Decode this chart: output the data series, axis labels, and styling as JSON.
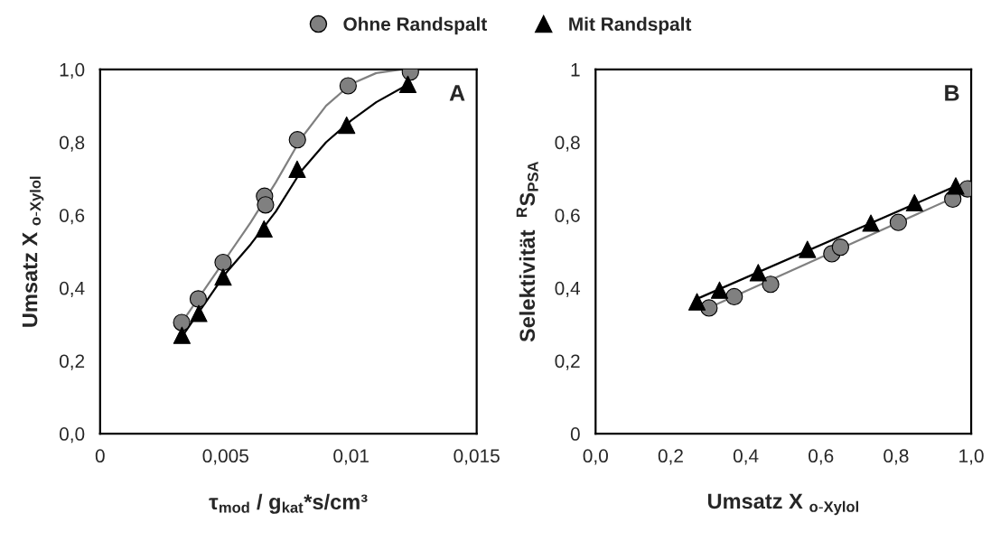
{
  "chart_data": [
    {
      "type": "scatter",
      "xlabel": "τ$_{mod}$ / g$_{kat}$*s/cm³",
      "ylabel": "Umsatz X $_{o-Xylol}$",
      "annotations": [
        "A"
      ],
      "legend": "top",
      "xlim": [
        0,
        0.015
      ],
      "xticks": [
        0,
        {
          "value": 0.005,
          "label": "0,005"
        },
        {
          "value": 0.01,
          "label": "0,01"
        },
        {
          "value": 0.015,
          "label": "0,015"
        }
      ],
      "ylim": [
        0,
        1
      ],
      "yticks": [
        {
          "value": 0,
          "label": "0,0"
        },
        {
          "value": 0.2,
          "label": "0,2"
        },
        {
          "value": 0.4,
          "label": "0,4"
        },
        {
          "value": 0.6,
          "label": "0,6"
        },
        {
          "value": 0.8,
          "label": "0,8"
        },
        {
          "value": 1,
          "label": "1,0"
        }
      ],
      "series": [
        {
          "type": "line",
          "color": "#808080",
          "marker": "none",
          "x": [
            0.0033,
            0.004,
            0.005,
            0.006,
            0.007,
            0.008,
            0.009,
            0.01,
            0.011,
            0.012,
            0.0124
          ],
          "values": [
            0.31,
            0.38,
            0.48,
            0.58,
            0.69,
            0.81,
            0.9,
            0.96,
            0.99,
            1.0,
            1.0
          ]
        },
        {
          "type": "line",
          "color": "#000000",
          "marker": "none",
          "x": [
            0.0033,
            0.004,
            0.005,
            0.006,
            0.007,
            0.008,
            0.009,
            0.01,
            0.011,
            0.0123
          ],
          "values": [
            0.27,
            0.34,
            0.44,
            0.52,
            0.61,
            0.72,
            0.8,
            0.86,
            0.91,
            0.96
          ]
        },
        {
          "name": "Ohne Randspalt",
          "color": "#808080",
          "marker": "circle",
          "x": [
            0.00325,
            0.00391,
            0.0049,
            0.00655,
            0.00659,
            0.00786,
            0.00988,
            0.01236
          ],
          "values": [
            0.305,
            0.37,
            0.47,
            0.652,
            0.628,
            0.807,
            0.955,
            0.993
          ]
        },
        {
          "name": "Mit Randspalt",
          "color": "#000000",
          "marker": "triangle",
          "x": [
            0.00326,
            0.00393,
            0.0049,
            0.00653,
            0.00785,
            0.00982,
            0.01226
          ],
          "values": [
            0.27,
            0.33,
            0.43,
            0.562,
            0.726,
            0.847,
            0.959
          ]
        }
      ]
    },
    {
      "type": "scatter",
      "xlabel": "Umsatz X $_{o-Xylol}$",
      "ylabel": "Selektivität  $^{R}$S$_{PSA}$",
      "annotations": [
        "B"
      ],
      "xlim": [
        0,
        1
      ],
      "xticks": [
        {
          "value": 0,
          "label": "0,0"
        },
        {
          "value": 0.2,
          "label": "0,2"
        },
        {
          "value": 0.4,
          "label": "0,4"
        },
        {
          "value": 0.6,
          "label": "0,6"
        },
        {
          "value": 0.8,
          "label": "0,8"
        },
        {
          "value": 1,
          "label": "1,0"
        }
      ],
      "ylim": [
        0,
        1
      ],
      "yticks": [
        0,
        {
          "value": 0.2,
          "label": "0,2"
        },
        {
          "value": 0.4,
          "label": "0,4"
        },
        {
          "value": 0.6,
          "label": "0,6"
        },
        {
          "value": 0.8,
          "label": "0,8"
        },
        1
      ],
      "series": [
        {
          "type": "line",
          "color": "#808080",
          "marker": "none",
          "x": [
            0.3,
            0.99
          ],
          "values": [
            0.345,
            0.665
          ]
        },
        {
          "type": "line",
          "color": "#000000",
          "marker": "none",
          "x": [
            0.27,
            0.96
          ],
          "values": [
            0.37,
            0.68
          ]
        },
        {
          "color": "#808080",
          "marker": "circle",
          "x": [
            0.302,
            0.369,
            0.466,
            0.629,
            0.652,
            0.806,
            0.951,
            0.99
          ],
          "values": [
            0.345,
            0.376,
            0.41,
            0.494,
            0.512,
            0.58,
            0.644,
            0.672
          ]
        },
        {
          "color": "#000000",
          "marker": "triangle",
          "x": [
            0.27,
            0.33,
            0.433,
            0.564,
            0.733,
            0.849,
            0.959
          ],
          "values": [
            0.362,
            0.394,
            0.442,
            0.506,
            0.578,
            0.634,
            0.68
          ]
        }
      ]
    }
  ]
}
